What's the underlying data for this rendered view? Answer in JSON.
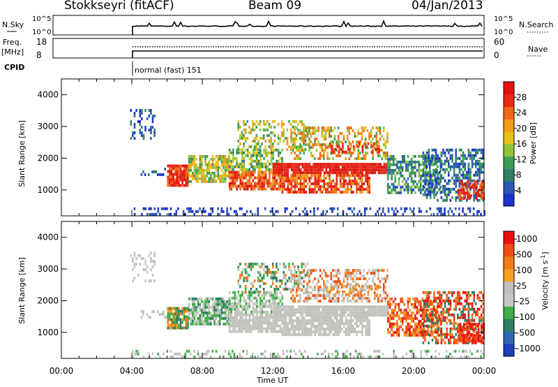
{
  "header": {
    "station": "Stokkseyri (fitACF)",
    "beam": "Beam 09",
    "date": "04/Jan/2013"
  },
  "strips": {
    "nsky_label": "N.Sky",
    "nsky_ticks": [
      "10^5",
      "10^0"
    ],
    "nsearch_label": "N.Search",
    "nsearch_ticks": [
      "10^5",
      "10^0"
    ],
    "freq_label": "Freq.",
    "freq_unit": "[MHz]",
    "freq_ticks": [
      "18",
      "8"
    ],
    "nave_label": "Nave",
    "nave_ticks": [
      "60",
      "0"
    ],
    "cpid_label": "CPID",
    "cpid_text": "normal (fast) 151"
  },
  "colors": {
    "power": [
      "#1c33c9",
      "#2a56b8",
      "#2f7f64",
      "#3a9e56",
      "#8fc43c",
      "#e6c21e",
      "#f29a1b",
      "#ee6a1a",
      "#e52a17",
      "#e0140f"
    ],
    "velocity": [
      "#e8120f",
      "#ee4d16",
      "#f27a1b",
      "#f3a024",
      "#c0c0bb",
      "#c6c6c1",
      "#3fae48",
      "#2d7f5e",
      "#2e65b4",
      "#1d3fc0"
    ]
  },
  "chart_data": [
    {
      "type": "heatmap",
      "name": "power",
      "xlabel": "Time UT",
      "ylabel": "Slant Range [km]",
      "x_ticks": [
        "00:00",
        "04:00",
        "08:00",
        "12:00",
        "16:00",
        "20:00",
        "00:00"
      ],
      "y_ticks": [
        1000,
        2000,
        3000,
        4000
      ],
      "xlim_hours": [
        0,
        24
      ],
      "ylim_km": [
        180,
        4500
      ],
      "colorbar_label": "Power [dB]",
      "colorbar_ticks": [
        "4",
        "8",
        "12",
        "16",
        "20",
        "24",
        "28"
      ],
      "colorbar_range": [
        0,
        30
      ]
    },
    {
      "type": "heatmap",
      "name": "velocity",
      "xlabel": "Time UT",
      "ylabel": "Slant Range [km]",
      "x_ticks": [
        "00:00",
        "04:00",
        "08:00",
        "12:00",
        "16:00",
        "20:00",
        "00:00"
      ],
      "y_ticks": [
        1000,
        2000,
        3000,
        4000
      ],
      "xlim_hours": [
        0,
        24
      ],
      "ylim_km": [
        180,
        4500
      ],
      "colorbar_label": "Velocity [m s",
      "colorbar_label_sup": "-1",
      "colorbar_ticks": [
        "1000",
        "500",
        "100",
        "25",
        "-25",
        "-100",
        "-500",
        "-1000"
      ]
    }
  ]
}
